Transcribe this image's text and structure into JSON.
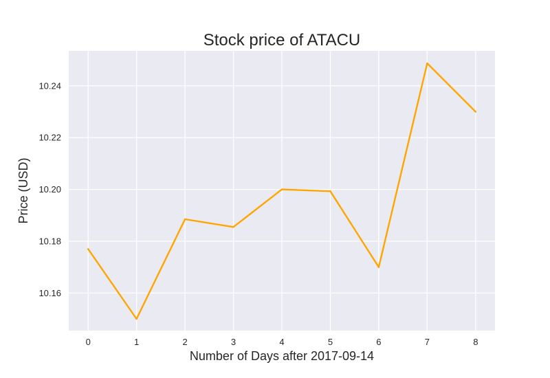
{
  "chart_data": {
    "type": "line",
    "title": "Stock price of ATACU",
    "xlabel": "Number of Days after 2017-09-14",
    "ylabel": "Price (USD)",
    "x": [
      0,
      1,
      2,
      3,
      4,
      5,
      6,
      7,
      8
    ],
    "xticks": [
      "0",
      "1",
      "2",
      "3",
      "4",
      "5",
      "6",
      "7",
      "8"
    ],
    "xlim": [
      -0.4,
      8.4
    ],
    "ylim": [
      10.1455,
      10.2535
    ],
    "yticks": [
      "10.16",
      "10.18",
      "10.20",
      "10.22",
      "10.24"
    ],
    "grid": true,
    "series": [
      {
        "color": "#FFA500",
        "values": [
          10.177,
          10.15,
          10.1885,
          10.1855,
          10.2,
          10.1993,
          10.17,
          10.2487,
          10.23
        ]
      }
    ],
    "colors": {
      "plot_background": "#EAEAF2",
      "grid": "#FFFFFF",
      "text": "#262626"
    }
  }
}
